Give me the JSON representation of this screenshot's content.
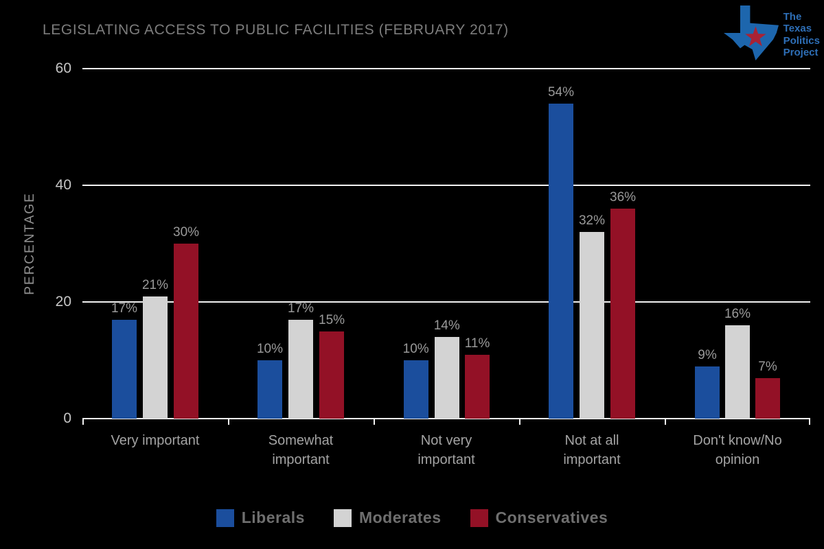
{
  "title": "LEGISLATING ACCESS TO PUBLIC FACILITIES (FEBRUARY 2017)",
  "logo": {
    "lines": [
      "The",
      "Texas",
      "Politics",
      "Project"
    ],
    "icon_blue": "#1d66ad",
    "star_red": "#a92234"
  },
  "chart_data": {
    "type": "bar",
    "title": "LEGISLATING ACCESS TO PUBLIC FACILITIES (FEBRUARY 2017)",
    "categories": [
      "Very important",
      "Somewhat important",
      "Not very important",
      "Not at all important",
      "Don't know/No opinion"
    ],
    "series": [
      {
        "name": "Liberals",
        "color": "#1b4e9d",
        "values": [
          17,
          10,
          10,
          54,
          9
        ]
      },
      {
        "name": "Moderates",
        "color": "#d3d3d3",
        "values": [
          21,
          17,
          14,
          32,
          16
        ]
      },
      {
        "name": "Conservatives",
        "color": "#931126",
        "values": [
          30,
          15,
          11,
          36,
          7
        ]
      }
    ],
    "xlabel": "",
    "ylabel": "PERCENTAGE",
    "ylim": [
      0,
      60
    ],
    "yticks": [
      0,
      20,
      40,
      60
    ],
    "grid": true,
    "legend_position": "bottom",
    "label_format": "{v}%",
    "background": "#000000"
  }
}
